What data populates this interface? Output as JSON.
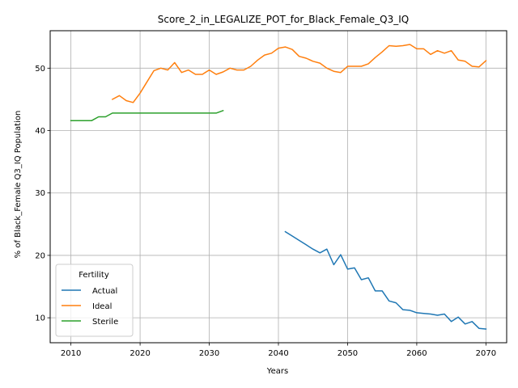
{
  "chart_data": {
    "type": "line",
    "title": "Score_2_in_LEGALIZE_POT_for_Black_Female_Q3_IQ",
    "xlabel": "Years",
    "ylabel": "% of Black_Female Q3_IQ Population",
    "xlim": [
      2007,
      2073
    ],
    "ylim": [
      6.0,
      56.0
    ],
    "xticks": [
      2010,
      2020,
      2030,
      2040,
      2050,
      2060,
      2070
    ],
    "yticks": [
      10,
      20,
      30,
      40,
      50
    ],
    "grid": true,
    "legend": {
      "title": "Fertility",
      "placement": "lower-left"
    },
    "series": [
      {
        "name": "Actual",
        "color": "#1f77b4",
        "x": [
          2041,
          2042,
          2043,
          2044,
          2045,
          2046,
          2047,
          2048,
          2049,
          2050,
          2051,
          2052,
          2053,
          2054,
          2055,
          2056,
          2057,
          2058,
          2059,
          2060,
          2061,
          2062,
          2063,
          2064,
          2065,
          2066,
          2067,
          2068,
          2069,
          2070
        ],
        "y": [
          23.8,
          23.1,
          22.4,
          21.7,
          21.0,
          20.4,
          21.0,
          18.5,
          20.1,
          17.8,
          18.0,
          16.1,
          16.4,
          14.3,
          14.3,
          12.7,
          12.4,
          11.3,
          11.2,
          10.8,
          10.7,
          10.6,
          10.4,
          10.6,
          9.4,
          10.1,
          9.0,
          9.4,
          8.3,
          8.2
        ]
      },
      {
        "name": "Ideal",
        "color": "#ff7f0e",
        "x": [
          2016,
          2017,
          2018,
          2019,
          2020,
          2021,
          2022,
          2023,
          2024,
          2025,
          2026,
          2027,
          2028,
          2029,
          2030,
          2031,
          2032,
          2033,
          2034,
          2035,
          2036,
          2037,
          2038,
          2039,
          2040,
          2041,
          2042,
          2043,
          2044,
          2045,
          2046,
          2047,
          2048,
          2049,
          2050,
          2051,
          2052,
          2053,
          2054,
          2055,
          2056,
          2057,
          2058,
          2059,
          2060,
          2061,
          2062,
          2063,
          2064,
          2065,
          2066,
          2067,
          2068,
          2069,
          2070
        ],
        "y": [
          45.0,
          45.6,
          44.8,
          44.5,
          46.0,
          47.8,
          49.6,
          50.0,
          49.7,
          50.9,
          49.3,
          49.7,
          49.0,
          49.0,
          49.7,
          49.0,
          49.4,
          50.0,
          49.7,
          49.7,
          50.3,
          51.3,
          52.1,
          52.4,
          53.2,
          53.4,
          53.0,
          51.9,
          51.6,
          51.1,
          50.8,
          50.0,
          49.5,
          49.3,
          50.3,
          50.3,
          50.3,
          50.7,
          51.7,
          52.6,
          53.6,
          53.5,
          53.6,
          53.8,
          53.1,
          53.1,
          52.2,
          52.8,
          52.4,
          52.8,
          51.3,
          51.1,
          50.3,
          50.2,
          51.2
        ]
      },
      {
        "name": "Sterile",
        "color": "#2ca02c",
        "x": [
          2010,
          2011,
          2012,
          2013,
          2014,
          2015,
          2016,
          2017,
          2018,
          2019,
          2020,
          2021,
          2022,
          2023,
          2024,
          2025,
          2026,
          2027,
          2028,
          2029,
          2030,
          2031,
          2032
        ],
        "y": [
          41.6,
          41.6,
          41.6,
          41.6,
          42.2,
          42.2,
          42.8,
          42.8,
          42.8,
          42.8,
          42.8,
          42.8,
          42.8,
          42.8,
          42.8,
          42.8,
          42.8,
          42.8,
          42.8,
          42.8,
          42.8,
          42.8,
          43.2
        ]
      }
    ]
  }
}
